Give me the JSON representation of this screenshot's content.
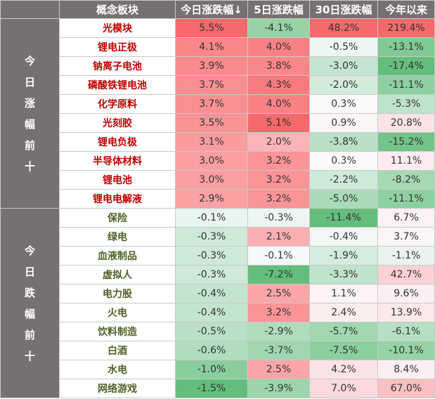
{
  "chart_data": {
    "type": "table",
    "columns": [
      "概念板块",
      "今日涨跌幅↓",
      "5日涨跌幅",
      "30日涨跌幅",
      "今年以来"
    ],
    "groups": [
      {
        "label": "今日涨幅前十",
        "direction": "up",
        "rows": [
          {
            "name": "光模块",
            "values": [
              "5.5%",
              "-4.1%",
              "48.2%",
              "219.4%"
            ]
          },
          {
            "name": "锂电正极",
            "values": [
              "4.1%",
              "4.0%",
              "-0.5%",
              "-13.1%"
            ]
          },
          {
            "name": "钠离子电池",
            "values": [
              "3.9%",
              "3.8%",
              "-3.0%",
              "-17.4%"
            ]
          },
          {
            "name": "磷酸铁锂电池",
            "values": [
              "3.7%",
              "4.3%",
              "-2.0%",
              "-11.1%"
            ]
          },
          {
            "name": "化学原料",
            "values": [
              "3.7%",
              "4.0%",
              "0.3%",
              "-5.3%"
            ]
          },
          {
            "name": "光刻胶",
            "values": [
              "3.5%",
              "5.1%",
              "0.9%",
              "20.8%"
            ]
          },
          {
            "name": "锂电负极",
            "values": [
              "3.1%",
              "2.0%",
              "-3.8%",
              "-15.2%"
            ]
          },
          {
            "name": "半导体材料",
            "values": [
              "3.0%",
              "3.2%",
              "0.3%",
              "11.1%"
            ]
          },
          {
            "name": "锂电池",
            "values": [
              "3.0%",
              "3.2%",
              "-2.2%",
              "-8.2%"
            ]
          },
          {
            "name": "锂电电解液",
            "values": [
              "2.9%",
              "3.2%",
              "-5.0%",
              "-11.1%"
            ]
          }
        ]
      },
      {
        "label": "今日跌幅前十",
        "direction": "down",
        "rows": [
          {
            "name": "保险",
            "values": [
              "-0.1%",
              "-0.3%",
              "-11.4%",
              "6.7%"
            ]
          },
          {
            "name": "绿电",
            "values": [
              "-0.3%",
              "2.1%",
              "-0.4%",
              "3.7%"
            ]
          },
          {
            "name": "血液制品",
            "values": [
              "-0.3%",
              "-0.1%",
              "-1.9%",
              "-1.1%"
            ]
          },
          {
            "name": "虚拟人",
            "values": [
              "-0.3%",
              "-7.2%",
              "-3.3%",
              "42.7%"
            ]
          },
          {
            "name": "电力股",
            "values": [
              "-0.4%",
              "2.5%",
              "1.1%",
              "9.6%"
            ]
          },
          {
            "name": "火电",
            "values": [
              "-0.4%",
              "3.2%",
              "2.4%",
              "13.9%"
            ]
          },
          {
            "name": "饮料制造",
            "values": [
              "-0.5%",
              "-2.9%",
              "-5.7%",
              "-6.1%"
            ]
          },
          {
            "name": "白酒",
            "values": [
              "-0.6%",
              "-3.7%",
              "-7.5%",
              "-10.1%"
            ]
          },
          {
            "name": "水电",
            "values": [
              "-1.0%",
              "2.5%",
              "4.2%",
              "8.4%"
            ]
          },
          {
            "name": "网络游戏",
            "values": [
              "-1.5%",
              "-3.9%",
              "7.0%",
              "67.0%"
            ]
          }
        ]
      }
    ],
    "colors": {
      "header_bg": "#767171",
      "positive_max": "#f8696b",
      "negative_max": "#63be7b",
      "neutral": "#fcfcff",
      "name_up": "#c00000",
      "name_down": "#4f6228"
    }
  }
}
